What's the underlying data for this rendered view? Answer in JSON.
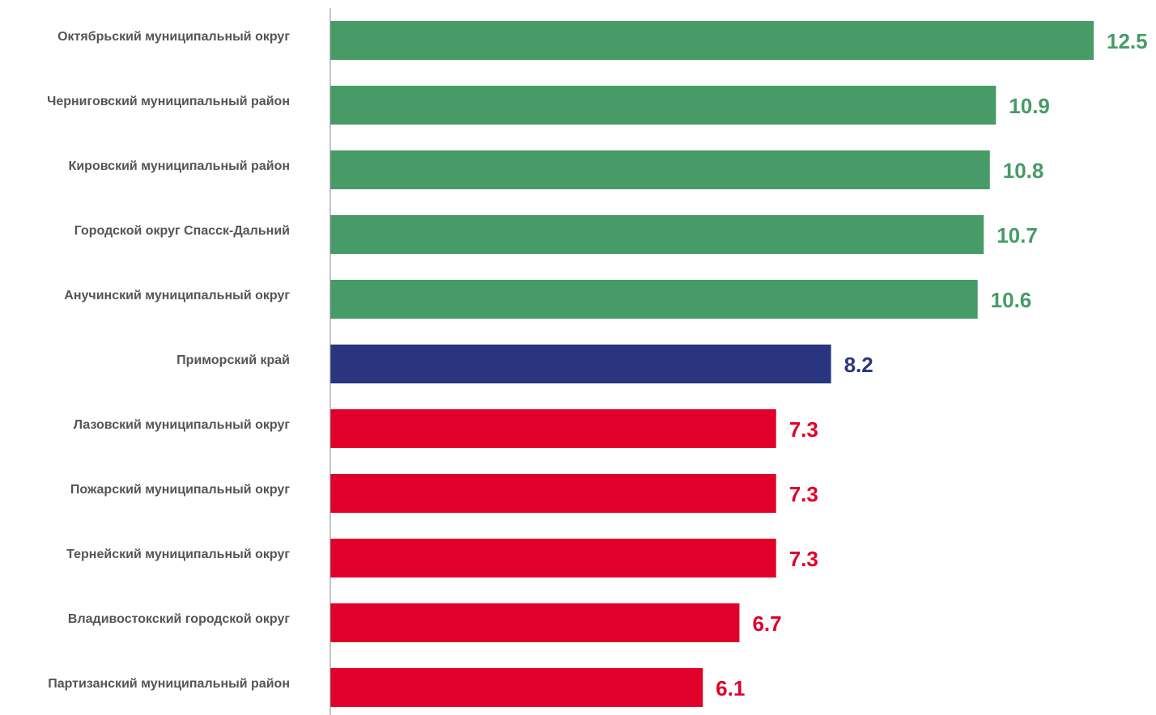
{
  "chart_data": {
    "type": "bar",
    "orientation": "horizontal",
    "categories": [
      "Октябрьский муниципальный округ",
      "Черниговский муниципальный район",
      "Кировский муниципальный район",
      "Городской округ Спасск-Дальний",
      "Анучинский муниципальный округ",
      "Приморский край",
      "Лазовский муниципальный округ",
      "Пожарский муниципальный округ",
      "Тернейский муниципальный округ",
      "Владивостокский городской округ",
      "Партизанский муниципальный район"
    ],
    "values": [
      12.5,
      10.9,
      10.8,
      10.7,
      10.6,
      8.2,
      7.3,
      7.3,
      7.3,
      6.7,
      6.1
    ],
    "value_labels": [
      "12.5",
      "10.9",
      "10.8",
      "10.7",
      "10.6",
      "8.2",
      "7.3",
      "7.3",
      "7.3",
      "6.7",
      "6.1"
    ],
    "bar_colors": [
      "#479b67",
      "#479b67",
      "#479b67",
      "#479b67",
      "#479b67",
      "#29357e",
      "#e0002a",
      "#e0002a",
      "#e0002a",
      "#e0002a",
      "#e0002a"
    ],
    "xlim": [
      0,
      12.5
    ],
    "grid": false,
    "legend": "none",
    "colors": {
      "above": "#479b67",
      "region": "#29357e",
      "below": "#e0002a",
      "axis": "#888888",
      "category_text": "#555555"
    }
  }
}
